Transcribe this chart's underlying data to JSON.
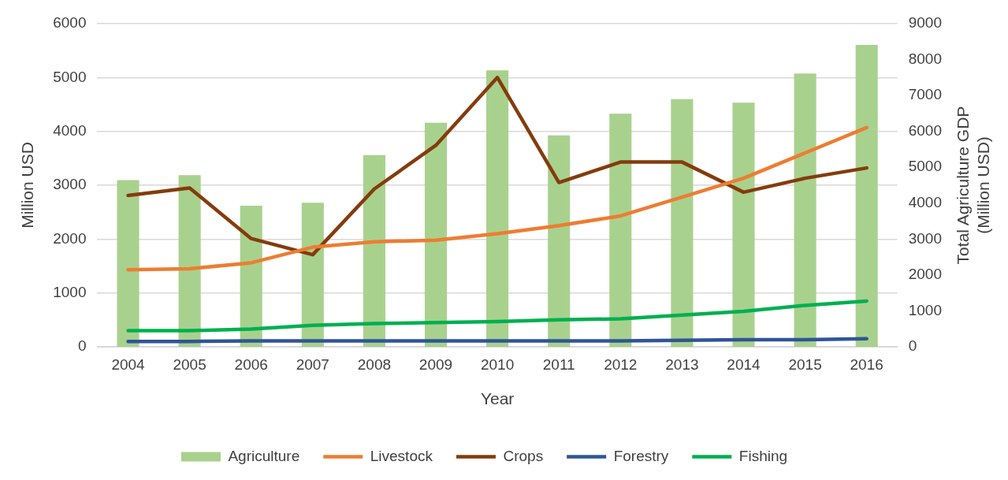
{
  "chart_data": {
    "type": "line",
    "xlabel": "Year",
    "ylabel": "Million USD",
    "y2label": "Total Agriculture GDP\n(Million USD)",
    "categories": [
      "2004",
      "2005",
      "2006",
      "2007",
      "2008",
      "2009",
      "2010",
      "2011",
      "2012",
      "2013",
      "2014",
      "2015",
      "2016"
    ],
    "series": [
      {
        "name": "Agriculture",
        "type": "bar",
        "axis": "y2",
        "color": "#a9d18e",
        "values": [
          4640,
          4780,
          3930,
          4010,
          5340,
          6240,
          7700,
          5890,
          6490,
          6900,
          6800,
          7610,
          8410
        ]
      },
      {
        "name": "Livestock",
        "color": "#ed7d31",
        "values": [
          1430,
          1450,
          1560,
          1850,
          1950,
          1980,
          2100,
          2250,
          2430,
          2780,
          3130,
          3600,
          4070
        ]
      },
      {
        "name": "Crops",
        "color": "#843c0c",
        "values": [
          2810,
          2950,
          2010,
          1710,
          2930,
          3740,
          5000,
          3050,
          3430,
          3430,
          2870,
          3130,
          3320
        ]
      },
      {
        "name": "Forestry",
        "color": "#2f5597",
        "values": [
          100,
          100,
          110,
          110,
          110,
          110,
          110,
          110,
          110,
          120,
          130,
          130,
          150
        ]
      },
      {
        "name": "Fishing",
        "color": "#00b050",
        "values": [
          300,
          300,
          330,
          400,
          430,
          450,
          470,
          500,
          520,
          590,
          660,
          770,
          850
        ]
      }
    ],
    "ylim": [
      0,
      6000
    ],
    "yticks": [
      0,
      1000,
      2000,
      3000,
      4000,
      5000,
      6000
    ],
    "y2lim": [
      0,
      9000
    ],
    "y2ticks": [
      0,
      1000,
      2000,
      3000,
      4000,
      5000,
      6000,
      7000,
      8000,
      9000
    ],
    "grid": "y",
    "legend": "bottom",
    "marker": "none",
    "line_style": "solid"
  }
}
